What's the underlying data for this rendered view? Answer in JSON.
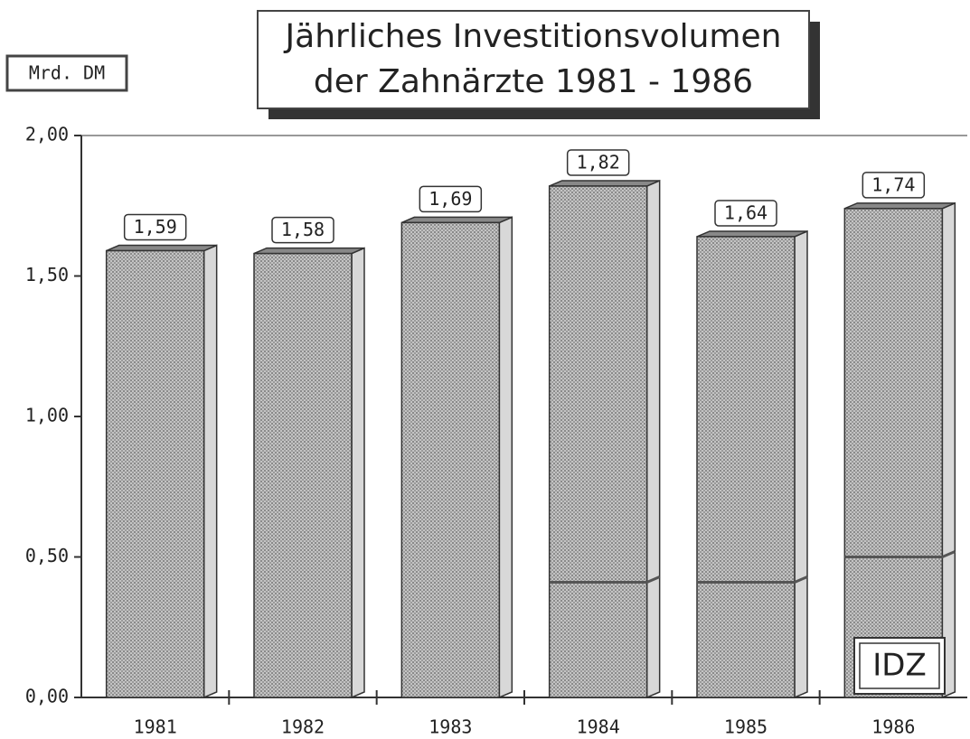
{
  "chart_data": {
    "type": "bar",
    "title": [
      "Jährliches Investitionsvolumen",
      "der Zahnärzte 1981 - 1986"
    ],
    "y_label": "Mrd. DM",
    "annotation": "IDZ",
    "categories": [
      "1981",
      "1982",
      "1983",
      "1984",
      "1985",
      "1986"
    ],
    "series": [
      {
        "color": "#b4b4b4",
        "values": [
          1.59,
          1.58,
          1.69,
          1.82,
          1.64,
          1.74
        ],
        "value_labels": [
          "1,59",
          "1,58",
          "1,69",
          "1,82",
          "1,64",
          "1,74"
        ]
      },
      {
        "color": "#555555",
        "values": [
          null,
          null,
          null,
          0.41,
          0.41,
          0.5
        ]
      }
    ],
    "ylim": [
      0,
      2
    ],
    "yticks": [
      {
        "value": 0,
        "label": "0,00"
      },
      {
        "value": 0.5,
        "label": "0,50"
      },
      {
        "value": 1,
        "label": "1,00"
      },
      {
        "value": 1.5,
        "label": "1,50"
      },
      {
        "value": 2,
        "label": "2,00"
      }
    ]
  }
}
